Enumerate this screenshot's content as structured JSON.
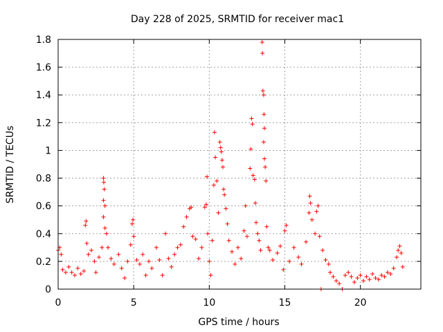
{
  "chart_data": {
    "type": "scatter",
    "title": "Day 228 of 2025, SRMTID for receiver mac1",
    "xlabel": "GPS time / hours",
    "ylabel": "SRMTID / TECUs",
    "xlim": [
      0,
      24
    ],
    "ylim": [
      0,
      1.8
    ],
    "xticks": [
      0,
      5,
      10,
      15,
      20
    ],
    "xtick_labels": [
      "0",
      "5",
      "10",
      "15",
      "20"
    ],
    "yticks": [
      0,
      0.2,
      0.4,
      0.6,
      0.8,
      1.0,
      1.2,
      1.4,
      1.6,
      1.8
    ],
    "ytick_labels": [
      "0",
      "0.2",
      "0.4",
      "0.6",
      "0.8",
      "1",
      "1.2",
      "1.4",
      "1.6",
      "1.8"
    ],
    "grid": true,
    "marker": "+",
    "series": [
      {
        "name": "SRMTID",
        "color": "#ff0000",
        "points": [
          [
            0.0,
            0.28
          ],
          [
            0.1,
            0.3
          ],
          [
            0.2,
            0.25
          ],
          [
            0.3,
            0.14
          ],
          [
            0.5,
            0.12
          ],
          [
            0.7,
            0.16
          ],
          [
            0.9,
            0.12
          ],
          [
            1.1,
            0.1
          ],
          [
            1.3,
            0.15
          ],
          [
            1.5,
            0.11
          ],
          [
            1.7,
            0.13
          ],
          [
            1.8,
            0.46
          ],
          [
            1.85,
            0.49
          ],
          [
            1.9,
            0.33
          ],
          [
            2.0,
            0.25
          ],
          [
            2.2,
            0.28
          ],
          [
            2.4,
            0.2
          ],
          [
            2.5,
            0.12
          ],
          [
            2.7,
            0.23
          ],
          [
            2.9,
            0.3
          ],
          [
            3.0,
            0.8
          ],
          [
            3.02,
            0.77
          ],
          [
            3.05,
            0.72
          ],
          [
            3.0,
            0.64
          ],
          [
            3.1,
            0.6
          ],
          [
            3.0,
            0.52
          ],
          [
            3.1,
            0.44
          ],
          [
            3.2,
            0.4
          ],
          [
            3.3,
            0.3
          ],
          [
            3.5,
            0.22
          ],
          [
            3.7,
            0.18
          ],
          [
            4.0,
            0.25
          ],
          [
            4.2,
            0.15
          ],
          [
            4.4,
            0.08
          ],
          [
            4.6,
            0.2
          ],
          [
            4.8,
            0.32
          ],
          [
            4.9,
            0.47
          ],
          [
            4.95,
            0.5
          ],
          [
            5.0,
            0.38
          ],
          [
            5.2,
            0.21
          ],
          [
            5.4,
            0.18
          ],
          [
            5.6,
            0.25
          ],
          [
            5.8,
            0.1
          ],
          [
            6.0,
            0.2
          ],
          [
            6.2,
            0.15
          ],
          [
            6.5,
            0.3
          ],
          [
            6.7,
            0.21
          ],
          [
            6.9,
            0.1
          ],
          [
            7.1,
            0.4
          ],
          [
            7.3,
            0.22
          ],
          [
            7.5,
            0.16
          ],
          [
            7.7,
            0.25
          ],
          [
            7.9,
            0.3
          ],
          [
            8.1,
            0.32
          ],
          [
            8.3,
            0.45
          ],
          [
            8.5,
            0.52
          ],
          [
            8.7,
            0.58
          ],
          [
            8.8,
            0.59
          ],
          [
            8.9,
            0.38
          ],
          [
            9.1,
            0.36
          ],
          [
            9.3,
            0.22
          ],
          [
            9.5,
            0.3
          ],
          [
            9.7,
            0.59
          ],
          [
            9.8,
            0.61
          ],
          [
            9.85,
            0.81
          ],
          [
            9.9,
            0.4
          ],
          [
            10.0,
            0.2
          ],
          [
            10.1,
            0.1
          ],
          [
            10.2,
            0.35
          ],
          [
            10.3,
            0.75
          ],
          [
            10.35,
            1.13
          ],
          [
            10.4,
            0.95
          ],
          [
            10.5,
            0.78
          ],
          [
            10.6,
            0.55
          ],
          [
            10.7,
            1.06
          ],
          [
            10.75,
            1.02
          ],
          [
            10.8,
            0.99
          ],
          [
            10.85,
            0.93
          ],
          [
            10.9,
            0.88
          ],
          [
            10.95,
            0.72
          ],
          [
            11.0,
            0.68
          ],
          [
            11.1,
            0.58
          ],
          [
            11.2,
            0.47
          ],
          [
            11.3,
            0.35
          ],
          [
            11.5,
            0.27
          ],
          [
            11.7,
            0.18
          ],
          [
            11.9,
            0.3
          ],
          [
            12.1,
            0.22
          ],
          [
            12.3,
            0.42
          ],
          [
            12.4,
            0.6
          ],
          [
            12.5,
            0.38
          ],
          [
            12.7,
            0.87
          ],
          [
            12.75,
            1.01
          ],
          [
            12.8,
            1.23
          ],
          [
            12.85,
            1.19
          ],
          [
            12.9,
            0.82
          ],
          [
            13.0,
            0.79
          ],
          [
            13.05,
            0.62
          ],
          [
            13.1,
            0.48
          ],
          [
            13.2,
            0.4
          ],
          [
            13.3,
            0.35
          ],
          [
            13.4,
            0.28
          ],
          [
            13.5,
            1.78
          ],
          [
            13.52,
            1.7
          ],
          [
            13.55,
            1.43
          ],
          [
            13.6,
            1.4
          ],
          [
            13.62,
            1.26
          ],
          [
            13.65,
            1.16
          ],
          [
            13.6,
            1.06
          ],
          [
            13.65,
            0.94
          ],
          [
            13.7,
            0.88
          ],
          [
            13.75,
            0.78
          ],
          [
            13.8,
            0.45
          ],
          [
            13.9,
            0.3
          ],
          [
            14.0,
            0.28
          ],
          [
            14.2,
            0.21
          ],
          [
            14.5,
            0.26
          ],
          [
            14.7,
            0.31
          ],
          [
            14.9,
            0.14
          ],
          [
            15.0,
            0.42
          ],
          [
            15.1,
            0.46
          ],
          [
            15.3,
            0.2
          ],
          [
            15.6,
            0.3
          ],
          [
            15.9,
            0.23
          ],
          [
            16.1,
            0.18
          ],
          [
            16.4,
            0.34
          ],
          [
            16.6,
            0.55
          ],
          [
            16.65,
            0.67
          ],
          [
            16.7,
            0.62
          ],
          [
            16.8,
            0.5
          ],
          [
            17.0,
            0.4
          ],
          [
            17.1,
            0.56
          ],
          [
            17.2,
            0.6
          ],
          [
            17.3,
            0.38
          ],
          [
            17.4,
            0.0
          ],
          [
            17.5,
            0.28
          ],
          [
            17.7,
            0.21
          ],
          [
            17.9,
            0.18
          ],
          [
            18.0,
            0.12
          ],
          [
            18.2,
            0.09
          ],
          [
            18.4,
            0.06
          ],
          [
            18.6,
            0.04
          ],
          [
            18.8,
            0.0
          ],
          [
            19.0,
            0.1
          ],
          [
            19.2,
            0.12
          ],
          [
            19.4,
            0.09
          ],
          [
            19.6,
            0.05
          ],
          [
            19.8,
            0.08
          ],
          [
            20.0,
            0.1
          ],
          [
            20.2,
            0.06
          ],
          [
            20.4,
            0.09
          ],
          [
            20.6,
            0.07
          ],
          [
            20.8,
            0.11
          ],
          [
            21.0,
            0.08
          ],
          [
            21.2,
            0.07
          ],
          [
            21.4,
            0.1
          ],
          [
            21.6,
            0.09
          ],
          [
            21.8,
            0.12
          ],
          [
            22.0,
            0.11
          ],
          [
            22.2,
            0.15
          ],
          [
            22.4,
            0.23
          ],
          [
            22.5,
            0.28
          ],
          [
            22.6,
            0.31
          ],
          [
            22.7,
            0.26
          ],
          [
            22.8,
            0.16
          ]
        ]
      }
    ]
  }
}
